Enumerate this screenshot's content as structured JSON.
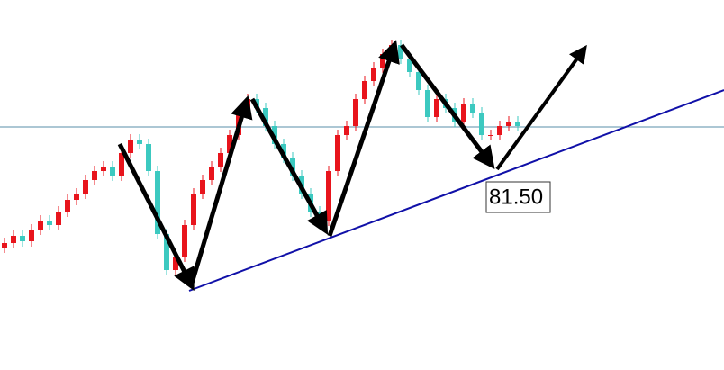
{
  "chart_data": {
    "type": "candlestick",
    "ylim": [
      77.08,
      85.3
    ],
    "colors": {
      "up": "#e8141c",
      "down": "#3cc9c0"
    },
    "opens": [
      79.8,
      79.9,
      80.06,
      79.94,
      80.2,
      80.4,
      80.3,
      80.6,
      80.86,
      81.0,
      81.3,
      81.5,
      81.6,
      81.4,
      81.9,
      82.2,
      82.1,
      81.5,
      80.1,
      79.3,
      79.6,
      80.3,
      81.0,
      81.3,
      81.6,
      81.9,
      82.3,
      82.8,
      83.1,
      82.9,
      82.5,
      82.1,
      81.8,
      81.4,
      81.0,
      80.6,
      80.4,
      81.5,
      82.3,
      82.5,
      83.1,
      83.5,
      83.8,
      84.1,
      84.3,
      84.0,
      83.7,
      83.3,
      82.7,
      83.1,
      82.9,
      82.6,
      83.0,
      82.8,
      82.3,
      82.3,
      82.5,
      82.6
    ],
    "highs": [
      80.02,
      80.18,
      80.18,
      80.32,
      80.52,
      80.52,
      80.72,
      80.98,
      81.12,
      81.42,
      81.62,
      81.72,
      81.72,
      82.02,
      82.32,
      82.32,
      82.22,
      81.62,
      80.22,
      79.72,
      80.42,
      81.12,
      81.42,
      81.72,
      82.02,
      82.42,
      82.92,
      83.22,
      83.22,
      83.02,
      82.62,
      82.22,
      81.92,
      81.52,
      81.12,
      80.72,
      81.62,
      82.42,
      82.62,
      83.22,
      83.62,
      83.92,
      84.22,
      84.42,
      84.42,
      84.12,
      83.82,
      83.42,
      83.22,
      83.22,
      83.02,
      83.12,
      83.12,
      82.92,
      82.42,
      82.62,
      82.72,
      82.72
    ],
    "lows": [
      79.68,
      79.78,
      79.82,
      79.82,
      80.08,
      80.18,
      80.18,
      80.48,
      80.74,
      80.88,
      81.18,
      81.38,
      81.28,
      81.28,
      81.78,
      81.98,
      81.38,
      79.98,
      79.18,
      79.18,
      79.48,
      80.18,
      80.88,
      81.18,
      81.48,
      81.78,
      82.18,
      82.68,
      82.78,
      82.38,
      81.98,
      81.68,
      81.28,
      80.88,
      80.48,
      80.28,
      80.28,
      81.38,
      82.18,
      82.38,
      82.98,
      83.38,
      83.68,
      83.98,
      83.88,
      83.58,
      83.18,
      82.58,
      82.58,
      82.78,
      82.48,
      82.48,
      82.68,
      82.18,
      82.18,
      82.18,
      82.38,
      82.38
    ],
    "closes": [
      79.9,
      80.06,
      79.94,
      80.2,
      80.4,
      80.3,
      80.6,
      80.86,
      81.0,
      81.3,
      81.5,
      81.6,
      81.4,
      81.9,
      82.2,
      82.1,
      81.5,
      80.1,
      79.3,
      79.6,
      80.3,
      81.0,
      81.3,
      81.6,
      81.9,
      82.3,
      82.8,
      83.1,
      82.9,
      82.5,
      82.1,
      81.8,
      81.4,
      81.0,
      80.6,
      80.4,
      81.5,
      82.3,
      82.5,
      83.1,
      83.5,
      83.8,
      84.1,
      84.3,
      84.0,
      83.7,
      83.3,
      82.7,
      83.1,
      82.9,
      82.6,
      83.0,
      82.8,
      82.3,
      82.3,
      82.5,
      82.6,
      82.5
    ],
    "hline": {
      "value": 82.48,
      "color": "#5a8fa8"
    },
    "annotation": {
      "value": 81.5,
      "label": "81.50"
    }
  }
}
